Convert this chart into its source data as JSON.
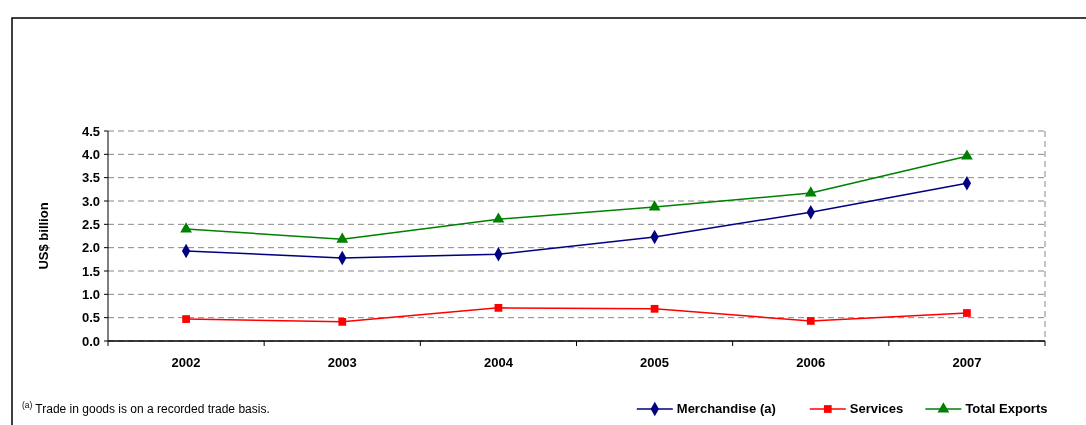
{
  "chart_data": {
    "type": "line",
    "categories": [
      "2002",
      "2003",
      "2004",
      "2005",
      "2006",
      "2007"
    ],
    "series": [
      {
        "name": "Merchandise (a)",
        "color": "#000080",
        "marker": "diamond",
        "values": [
          1.93,
          1.78,
          1.86,
          2.23,
          2.76,
          3.38
        ]
      },
      {
        "name": "Services",
        "color": "#ff0000",
        "marker": "square",
        "values": [
          0.47,
          0.41,
          0.71,
          0.69,
          0.43,
          0.6
        ]
      },
      {
        "name": "Total Exports",
        "color": "#008000",
        "marker": "triangle",
        "values": [
          2.4,
          2.18,
          2.61,
          2.87,
          3.17,
          3.96
        ]
      }
    ],
    "ylabel": "US$ billion",
    "ylim": [
      0,
      4.5
    ],
    "yticks": [
      {
        "value": 0,
        "label": "0.0"
      },
      {
        "value": 0.5,
        "label": "0.5"
      },
      {
        "value": 1,
        "label": "1.0"
      },
      {
        "value": 1.5,
        "label": "1.5"
      },
      {
        "value": 2,
        "label": "2.0"
      },
      {
        "value": 2.5,
        "label": "2.5"
      },
      {
        "value": 3,
        "label": "3.0"
      },
      {
        "value": 3.5,
        "label": "3.5"
      },
      {
        "value": 4,
        "label": "4.0"
      },
      {
        "value": 4.5,
        "label": "4.5"
      }
    ],
    "grid": "y",
    "legend": "bottom right",
    "line_style": "solid",
    "annotations": [
      "$^{(a)}$ Trade in goods is on a recorded trade basis."
    ]
  }
}
